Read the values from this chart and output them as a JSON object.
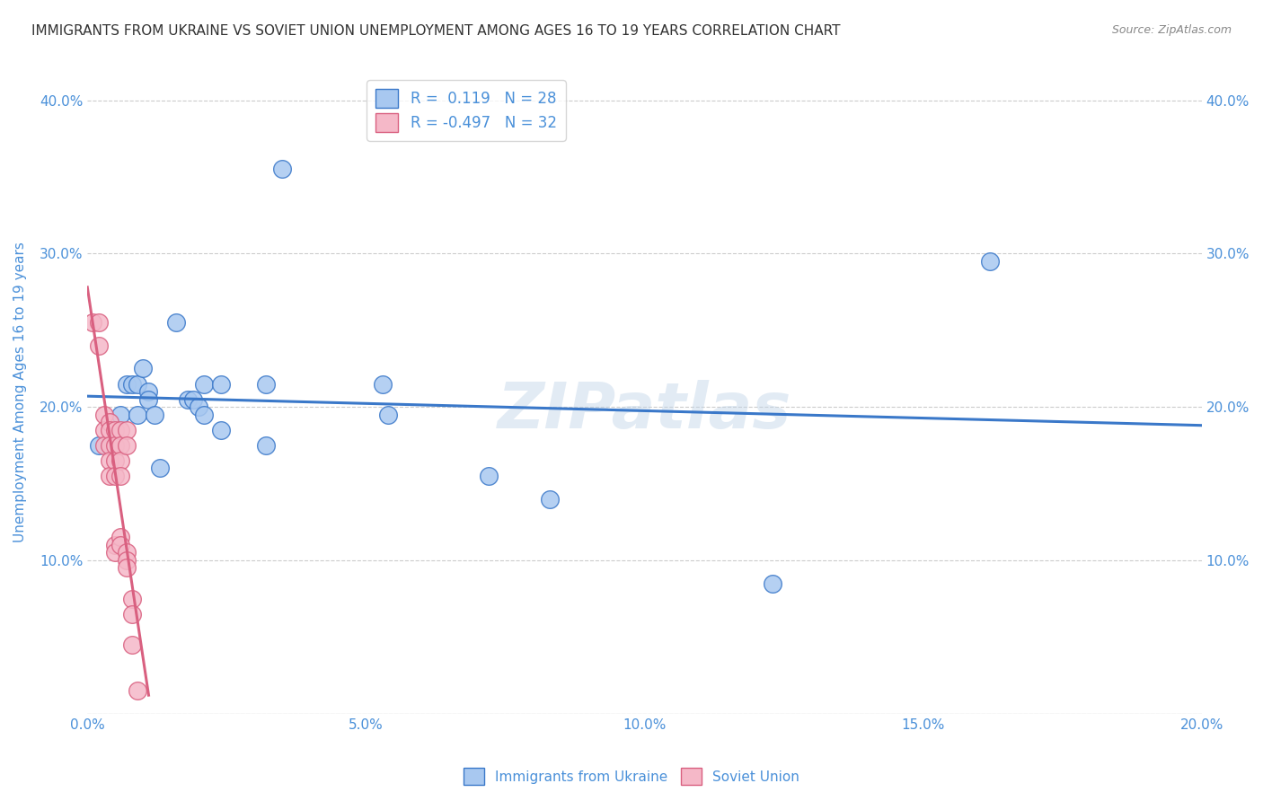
{
  "title": "IMMIGRANTS FROM UKRAINE VS SOVIET UNION UNEMPLOYMENT AMONG AGES 16 TO 19 YEARS CORRELATION CHART",
  "source": "Source: ZipAtlas.com",
  "xlabel": "",
  "ylabel": "Unemployment Among Ages 16 to 19 years",
  "xlim": [
    0.0,
    0.2
  ],
  "ylim": [
    0.0,
    0.42
  ],
  "xticks": [
    0.0,
    0.025,
    0.05,
    0.075,
    0.1,
    0.125,
    0.15,
    0.175,
    0.2
  ],
  "xticklabels": [
    "0.0%",
    "",
    "5.0%",
    "",
    "10.0%",
    "",
    "15.0%",
    "",
    "20.0%"
  ],
  "yticks_left": [
    0.0,
    0.1,
    0.2,
    0.3,
    0.4
  ],
  "yticks_right": [
    0.0,
    0.1,
    0.2,
    0.3,
    0.4
  ],
  "yticklabels_left": [
    "",
    "10.0%",
    "20.0%",
    "30.0%",
    "40.0%"
  ],
  "yticklabels_right": [
    "",
    "10.0%",
    "20.0%",
    "30.0%",
    "40.0%"
  ],
  "ukraine_color": "#a8c8f0",
  "soviet_color": "#f5b8c8",
  "ukraine_line_color": "#3a78c9",
  "soviet_line_color": "#d96080",
  "ukraine_R": 0.119,
  "ukraine_N": 28,
  "soviet_R": -0.497,
  "soviet_N": 32,
  "ukraine_x": [
    0.002,
    0.006,
    0.007,
    0.008,
    0.009,
    0.009,
    0.01,
    0.011,
    0.011,
    0.012,
    0.013,
    0.016,
    0.018,
    0.019,
    0.02,
    0.021,
    0.021,
    0.024,
    0.024,
    0.032,
    0.032,
    0.035,
    0.053,
    0.054,
    0.072,
    0.083,
    0.123,
    0.162
  ],
  "ukraine_y": [
    0.175,
    0.195,
    0.215,
    0.215,
    0.215,
    0.195,
    0.225,
    0.21,
    0.205,
    0.195,
    0.16,
    0.255,
    0.205,
    0.205,
    0.2,
    0.195,
    0.215,
    0.215,
    0.185,
    0.215,
    0.175,
    0.355,
    0.215,
    0.195,
    0.155,
    0.14,
    0.085,
    0.295
  ],
  "soviet_x": [
    0.001,
    0.002,
    0.002,
    0.003,
    0.003,
    0.003,
    0.004,
    0.004,
    0.004,
    0.004,
    0.004,
    0.005,
    0.005,
    0.005,
    0.005,
    0.005,
    0.005,
    0.006,
    0.006,
    0.006,
    0.006,
    0.006,
    0.006,
    0.007,
    0.007,
    0.007,
    0.007,
    0.007,
    0.008,
    0.008,
    0.008,
    0.009
  ],
  "soviet_y": [
    0.255,
    0.255,
    0.24,
    0.195,
    0.185,
    0.175,
    0.19,
    0.185,
    0.175,
    0.165,
    0.155,
    0.185,
    0.175,
    0.165,
    0.155,
    0.11,
    0.105,
    0.185,
    0.175,
    0.165,
    0.155,
    0.115,
    0.11,
    0.185,
    0.175,
    0.105,
    0.1,
    0.095,
    0.075,
    0.065,
    0.045,
    0.015
  ],
  "watermark": "ZIPatlas",
  "background_color": "#ffffff",
  "grid_color": "#cccccc",
  "tick_color": "#4a90d9",
  "title_color": "#333333"
}
